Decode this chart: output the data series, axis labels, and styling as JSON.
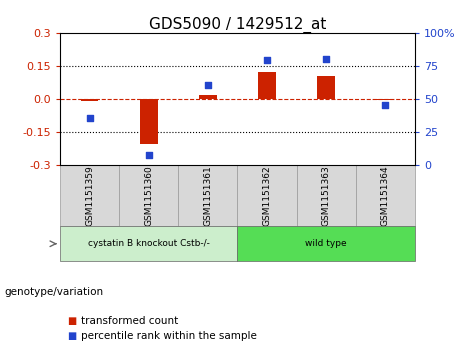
{
  "title": "GDS5090 / 1429512_at",
  "samples": [
    "GSM1151359",
    "GSM1151360",
    "GSM1151361",
    "GSM1151362",
    "GSM1151363",
    "GSM1151364"
  ],
  "transformed_count": [
    -0.012,
    -0.205,
    0.018,
    0.12,
    0.105,
    -0.008
  ],
  "percentile_rank": [
    35,
    7,
    60,
    79,
    80,
    45
  ],
  "bar_color": "#cc2200",
  "dot_color": "#2244cc",
  "dashed_line_color": "#cc2200",
  "ylim_left": [
    -0.3,
    0.3
  ],
  "ylim_right": [
    0,
    100
  ],
  "yticks_left": [
    -0.3,
    -0.15,
    0.0,
    0.15,
    0.3
  ],
  "yticks_right": [
    0,
    25,
    50,
    75,
    100
  ],
  "hlines_dotted": [
    -0.15,
    0.15
  ],
  "hline_dashed": 0.0,
  "group1_label": "cystatin B knockout Cstb-/-",
  "group2_label": "wild type",
  "group1_indices": [
    0,
    1,
    2
  ],
  "group2_indices": [
    3,
    4,
    5
  ],
  "group1_color": "#cceecc",
  "group2_color": "#55dd55",
  "annotation_label": "genotype/variation",
  "legend_bar_label": "transformed count",
  "legend_dot_label": "percentile rank within the sample",
  "sample_box_color": "#d8d8d8",
  "plot_bg_color": "#ffffff",
  "title_fontsize": 11,
  "tick_fontsize": 8,
  "label_fontsize": 8
}
